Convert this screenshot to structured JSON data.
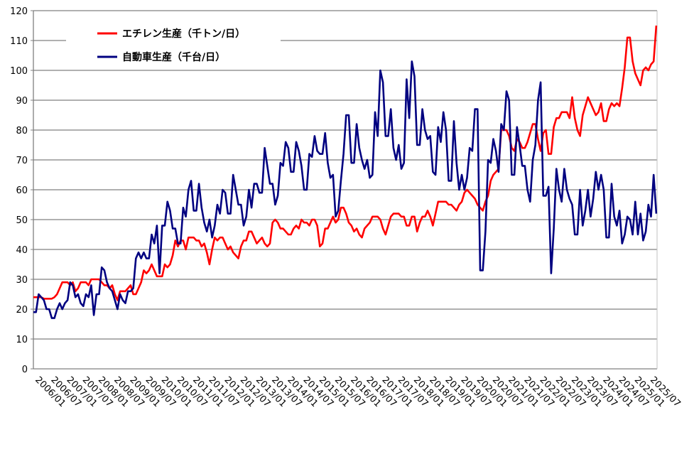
{
  "chart_data": {
    "type": "line",
    "title": "",
    "xlabel": "",
    "ylabel": "",
    "ylim": [
      0,
      120
    ],
    "yticks": [
      0,
      10,
      20,
      30,
      40,
      50,
      60,
      70,
      80,
      90,
      100,
      110,
      120
    ],
    "grid": true,
    "legend_position": "top-left",
    "x_start": "2006/01",
    "x_frequency": "monthly",
    "x_tick_labels": [
      "2006/01",
      "2006/07",
      "2007/01",
      "2007/07",
      "2008/01",
      "2008/07",
      "2009/01",
      "2009/07",
      "2010/01",
      "2010/07",
      "2011/01",
      "2011/07",
      "2012/01",
      "2012/07",
      "2013/01",
      "2013/07",
      "2014/01",
      "2014/07",
      "2015/01",
      "2015/07",
      "2016/01",
      "2016/07",
      "2017/01",
      "2017/07",
      "2018/01",
      "2018/07",
      "2019/01",
      "2019/07",
      "2020/01",
      "2020/07",
      "2021/01",
      "2021/07",
      "2022/01",
      "2022/07",
      "2023/01",
      "2023/07",
      "2024/01",
      "2024/07",
      "2025/01",
      "2025/07"
    ],
    "series": [
      {
        "name": "エチレン生産（千トン/日）",
        "color": "#ff0000",
        "values": [
          24,
          24,
          24,
          24,
          23.5,
          23.5,
          23.5,
          23.5,
          24,
          25,
          27,
          29,
          29,
          29,
          28,
          29,
          26,
          27,
          29,
          29,
          29,
          28,
          30,
          30,
          30,
          30,
          29,
          28,
          28,
          27,
          28,
          25,
          23,
          26,
          26,
          26,
          27,
          28,
          25,
          25,
          27,
          29,
          33,
          32,
          33,
          35,
          33,
          31,
          31,
          31,
          35,
          34,
          35,
          38,
          43,
          41,
          43,
          43,
          40,
          44,
          44,
          44,
          43,
          43,
          41,
          42,
          39,
          35,
          40,
          44,
          43,
          44,
          44,
          42,
          40,
          41,
          39,
          38,
          37,
          41,
          43,
          43,
          46,
          46,
          44,
          42,
          43,
          44,
          42,
          41,
          42,
          49,
          50,
          49,
          47,
          47,
          46,
          45,
          45,
          47,
          48,
          47,
          50,
          49,
          49,
          48,
          50,
          50,
          48,
          41,
          42,
          47,
          47,
          49,
          51,
          49,
          50,
          54,
          54,
          52,
          49,
          48,
          46,
          47,
          45,
          44,
          47,
          48,
          49,
          51,
          51,
          51,
          50,
          47,
          45,
          48,
          51,
          52,
          52,
          52,
          51,
          51,
          48,
          48,
          51,
          51,
          46,
          49,
          51,
          51,
          53,
          51,
          48,
          52,
          56,
          56,
          56,
          56,
          55,
          55,
          54,
          53,
          55,
          56,
          59,
          60,
          59,
          58,
          57,
          55,
          54,
          53,
          56,
          58,
          63,
          65,
          66,
          67,
          80,
          80,
          80,
          78,
          74,
          73,
          77,
          76,
          74,
          74,
          76,
          79,
          82,
          82,
          77,
          73,
          79,
          80,
          72,
          72,
          81,
          84,
          84,
          86,
          86,
          86,
          84,
          91,
          84,
          80,
          78,
          85,
          88,
          91,
          89,
          87,
          85,
          86,
          89,
          83,
          83,
          87,
          89,
          88,
          89,
          88,
          94,
          101,
          111,
          111,
          103,
          99,
          97,
          95,
          100,
          101,
          100,
          102,
          103,
          115
        ]
      },
      {
        "name": "自動車生産（千台/日）",
        "color": "#000080",
        "values": [
          19,
          19,
          25,
          24,
          23,
          20,
          20,
          17,
          17,
          20,
          22,
          20,
          22,
          23,
          29,
          28,
          24,
          25,
          22,
          21,
          25,
          24,
          28,
          18,
          25,
          25,
          34,
          33,
          29,
          27,
          26,
          23,
          20,
          25,
          23,
          22,
          26,
          26,
          27,
          37,
          39,
          37,
          39,
          37,
          37,
          45,
          42,
          48,
          32,
          48,
          48,
          56,
          53,
          47,
          47,
          42,
          42,
          54,
          51,
          60,
          63,
          53,
          53,
          62,
          54,
          49,
          46,
          50,
          44,
          48,
          55,
          52,
          60,
          59,
          52,
          52,
          65,
          60,
          55,
          55,
          48,
          51,
          60,
          54,
          62,
          62,
          59,
          59,
          74,
          68,
          62,
          62,
          55,
          58,
          69,
          68,
          76,
          74,
          66,
          66,
          76,
          73,
          68,
          60,
          60,
          72,
          71,
          78,
          73,
          72,
          72,
          79,
          69,
          64,
          65,
          51,
          53,
          63,
          72,
          85,
          85,
          69,
          69,
          82,
          74,
          70,
          67,
          70,
          64,
          65,
          86,
          78,
          100,
          96,
          78,
          78,
          87,
          74,
          70,
          75,
          67,
          69,
          97,
          84,
          103,
          98,
          75,
          75,
          87,
          80,
          77,
          78,
          66,
          65,
          81,
          76,
          86,
          80,
          63,
          63,
          83,
          69,
          60,
          65,
          60,
          64,
          74,
          73,
          87,
          87,
          33,
          33,
          46,
          70,
          69,
          77,
          73,
          66,
          82,
          80,
          93,
          90,
          65,
          65,
          81,
          75,
          68,
          68,
          60,
          56,
          70,
          75,
          90,
          96,
          58,
          58,
          61,
          32,
          47,
          67,
          60,
          56,
          67,
          60,
          57,
          55,
          45,
          45,
          60,
          48,
          53,
          60,
          51,
          57,
          66,
          60,
          65,
          60,
          44,
          44,
          62,
          51,
          48,
          53,
          42,
          45,
          51,
          50,
          45,
          56,
          45,
          52,
          43,
          46,
          55,
          51,
          65,
          52
        ]
      }
    ]
  }
}
